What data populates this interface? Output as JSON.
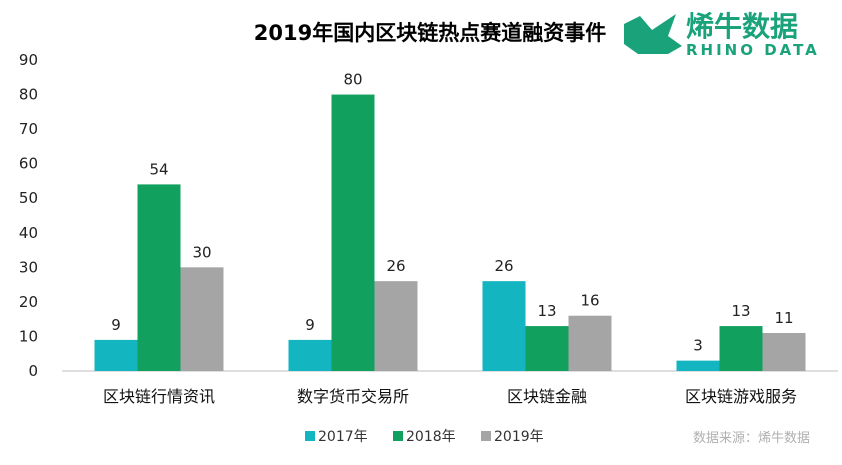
{
  "brand": {
    "name_cn": "烯牛数据",
    "name_en": "RHINO DATA",
    "color": "#1aa37a"
  },
  "source": "数据来源：烯牛数据",
  "chart_data": {
    "type": "bar",
    "title": "2019年国内区块链热点赛道融资事件",
    "categories": [
      "区块链行情资讯",
      "数字货币交易所",
      "区块链金融",
      "区块链游戏服务"
    ],
    "series": [
      {
        "name": "2017年",
        "color": "#12b5c0",
        "values": [
          9,
          9,
          26,
          3
        ]
      },
      {
        "name": "2018年",
        "color": "#12a05e",
        "values": [
          54,
          80,
          13,
          13
        ]
      },
      {
        "name": "2019年",
        "color": "#a5a5a5",
        "values": [
          30,
          26,
          16,
          11
        ]
      }
    ],
    "ylim": [
      0,
      90
    ],
    "yticks": [
      0,
      10,
      20,
      30,
      40,
      50,
      60,
      70,
      80,
      90
    ],
    "xlabel": "",
    "ylabel": "",
    "grid": false,
    "legend_position": "bottom-center"
  }
}
